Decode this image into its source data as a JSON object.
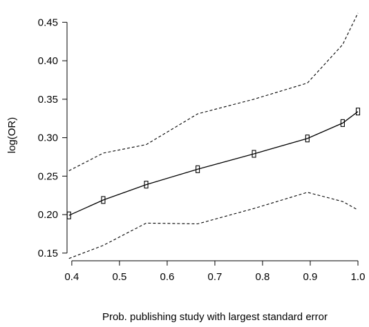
{
  "chart_data": {
    "type": "line",
    "xlabel": "Prob. publishing  study with largest standard error",
    "ylabel": "log(OR)",
    "xlim": [
      0.39,
      1.0
    ],
    "ylim": [
      0.14,
      0.47
    ],
    "x_ticks": [
      0.4,
      0.5,
      0.6,
      0.7,
      0.8,
      0.9,
      1.0
    ],
    "x_tick_labels": [
      "0.4",
      "0.5",
      "0.6",
      "0.7",
      "0.8",
      "0.9",
      "1.0"
    ],
    "y_ticks": [
      0.15,
      0.2,
      0.25,
      0.3,
      0.35,
      0.4,
      0.45
    ],
    "y_tick_labels": [
      "0.15",
      "0.20",
      "0.25",
      "0.30",
      "0.35",
      "0.40",
      "0.45"
    ],
    "grid": false,
    "series": [
      {
        "role": "estimate",
        "style": "solid",
        "markers": "square",
        "x": [
          0.394,
          0.466,
          0.556,
          0.664,
          0.782,
          0.894,
          0.968,
          1.0
        ],
        "y": [
          0.199,
          0.219,
          0.239,
          0.259,
          0.279,
          0.299,
          0.319,
          0.334
        ]
      },
      {
        "role": "upper-bound",
        "style": "dashed",
        "x": [
          0.394,
          0.466,
          0.556,
          0.664,
          0.782,
          0.894,
          0.968,
          1.0
        ],
        "y": [
          0.257,
          0.28,
          0.291,
          0.331,
          0.35,
          0.371,
          0.421,
          0.462
        ]
      },
      {
        "role": "lower-bound",
        "style": "dashed",
        "x": [
          0.394,
          0.466,
          0.556,
          0.664,
          0.782,
          0.894,
          0.968,
          1.0
        ],
        "y": [
          0.143,
          0.16,
          0.189,
          0.188,
          0.208,
          0.229,
          0.217,
          0.206
        ]
      }
    ]
  }
}
